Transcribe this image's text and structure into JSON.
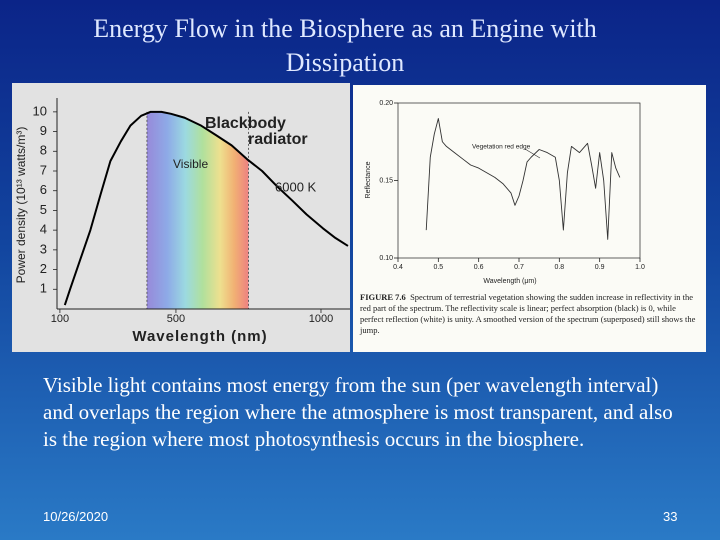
{
  "title": "Energy Flow in the Biosphere as an Engine with Dissipation",
  "figures": [
    {
      "type": "line",
      "color": "#000000",
      "x_label": "Wavelength (nm)",
      "y_label": "Power density (10¹³ watts/m³)",
      "annotations": [
        "Blackbody",
        "radiator",
        "Visible",
        "6000 K"
      ],
      "visible_range": [
        400,
        750
      ],
      "x": [
        117,
        135,
        170,
        205,
        240,
        274,
        310,
        343,
        380,
        413,
        450,
        483,
        530,
        587,
        640,
        692,
        745,
        797,
        850,
        901,
        950,
        1006,
        1050,
        1093
      ],
      "values": [
        0.2,
        1,
        2.5,
        4,
        5.8,
        7.5,
        8.5,
        9.3,
        9.8,
        10,
        10,
        9.9,
        9.7,
        9.3,
        8.8,
        8.3,
        7.6,
        7,
        6.2,
        5.5,
        4.8,
        4.1,
        3.6,
        3.2
      ],
      "xlim": [
        90,
        1100
      ],
      "ylim": [
        0,
        10.5
      ],
      "xticks": [
        100,
        500,
        1000
      ],
      "yticks": [
        1,
        2,
        3,
        4,
        5,
        6,
        7,
        8,
        9,
        10
      ]
    },
    {
      "type": "line",
      "color": "#333333",
      "x_label": "Wavelength (μm)",
      "y_label": "Reflectance",
      "annotations": [
        "Vegetation red edge"
      ],
      "caption_label": "FIGURE 7.6",
      "caption": "Spectrum of terrestrial vegetation showing the sudden increase in reflectivity in the red part of the spectrum. The reflectivity scale is linear; perfect absorption (black) is 0, while perfect reflection (white) is unity. A smoothed version of the spectrum (superposed) still shows the jump.",
      "x": [
        0.47,
        0.48,
        0.49,
        0.5,
        0.51,
        0.52,
        0.54,
        0.56,
        0.58,
        0.6,
        0.62,
        0.64,
        0.66,
        0.68,
        0.69,
        0.7,
        0.71,
        0.72,
        0.73,
        0.75,
        0.77,
        0.79,
        0.8,
        0.81,
        0.82,
        0.83,
        0.85,
        0.87,
        0.88,
        0.89,
        0.9,
        0.91,
        0.92,
        0.93,
        0.94,
        0.95
      ],
      "values": [
        0.118,
        0.165,
        0.18,
        0.19,
        0.175,
        0.172,
        0.168,
        0.164,
        0.16,
        0.158,
        0.155,
        0.152,
        0.148,
        0.142,
        0.134,
        0.14,
        0.15,
        0.162,
        0.165,
        0.17,
        0.168,
        0.165,
        0.15,
        0.118,
        0.155,
        0.172,
        0.168,
        0.174,
        0.16,
        0.145,
        0.168,
        0.15,
        0.112,
        0.168,
        0.158,
        0.152
      ],
      "xlim": [
        0.4,
        1.0
      ],
      "ylim": [
        0.1,
        0.2
      ],
      "xticks": [
        0.4,
        0.5,
        0.6,
        0.7,
        0.8,
        0.9,
        {
          "value": 1,
          "label": "1.0"
        }
      ],
      "yticks": [
        {
          "value": 0.1,
          "label": "0.10"
        },
        0.15,
        {
          "value": 0.2,
          "label": "0.20"
        }
      ]
    }
  ],
  "body": "Visible light contains most energy from the sun (per wavelength interval) and overlaps the region where the atmosphere is most transparent, and also is the region where most photosynthesis occurs in the biosphere.",
  "footer": {
    "date": "10/26/2020",
    "page": 33
  }
}
